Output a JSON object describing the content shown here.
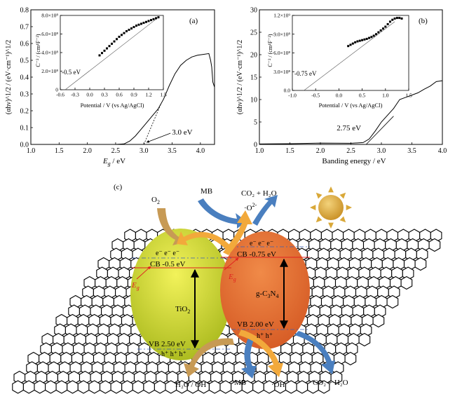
{
  "chart_data": [
    {
      "type": "line",
      "panel_label": "(a)",
      "xlabel_base": "E",
      "xlabel_sub": "g",
      "xlabel_unit": " / eV",
      "ylabel": "(αhν)^1/2 / (eV·cm⁻¹)^1/2",
      "xlim": [
        1.0,
        4.25
      ],
      "ylim": [
        0.0,
        0.8
      ],
      "xticks": [
        "1.0",
        "1.5",
        "2.0",
        "2.5",
        "3.0",
        "3.5",
        "4.0"
      ],
      "yticks": [
        "0.0",
        "0.1",
        "0.2",
        "0.3",
        "0.4",
        "0.5",
        "0.6",
        "0.7",
        "0.8"
      ],
      "series": [
        {
          "x": [
            1.0,
            2.0,
            2.5,
            2.65,
            2.75,
            2.85,
            2.95,
            3.05,
            3.15,
            3.25,
            3.35,
            3.45,
            3.55,
            3.65,
            3.75,
            3.85,
            3.95,
            4.05,
            4.15,
            4.18,
            4.2,
            4.22,
            4.25
          ],
          "y": [
            0.0,
            0.0,
            0.0,
            0.003,
            0.02,
            0.05,
            0.09,
            0.13,
            0.17,
            0.21,
            0.27,
            0.35,
            0.42,
            0.47,
            0.5,
            0.52,
            0.53,
            0.535,
            0.54,
            0.5,
            0.46,
            0.37,
            0.34
          ]
        }
      ],
      "tangent": {
        "x": [
          3.0,
          3.3
        ],
        "y": [
          0.0,
          0.24
        ]
      },
      "annotation": "3.0 eV",
      "annotation_point": [
        3.0,
        0.0
      ],
      "inset": {
        "ylabel": "C⁻² / (cm⁴F⁻²)",
        "xlabel": "Potential / V (vs Ag/AgCl)",
        "xlim": [
          -0.6,
          1.5
        ],
        "ylim": [
          0,
          800000000.0
        ],
        "xticks": [
          "-0.6",
          "-0.3",
          "0.0",
          "0.3",
          "0.6",
          "0.9",
          "1.2",
          "1.5"
        ],
        "yticks": [
          "0",
          "2.0×10⁸",
          "4.0×10⁸",
          "6.0×10⁸",
          "8.0×10⁸"
        ],
        "points": {
          "x": [
            0.2,
            0.25,
            0.3,
            0.35,
            0.4,
            0.45,
            0.5,
            0.55,
            0.6,
            0.65,
            0.7,
            0.75,
            0.8,
            0.85,
            0.9,
            0.95,
            1.0,
            1.05,
            1.1,
            1.15,
            1.2,
            1.25,
            1.3,
            1.35,
            1.4
          ],
          "y": [
            370000000.0,
            395000000.0,
            420000000.0,
            445000000.0,
            470000000.0,
            495000000.0,
            520000000.0,
            545000000.0,
            570000000.0,
            590000000.0,
            610000000.0,
            630000000.0,
            645000000.0,
            660000000.0,
            675000000.0,
            690000000.0,
            700000000.0,
            710000000.0,
            720000000.0,
            730000000.0,
            740000000.0,
            750000000.0,
            760000000.0,
            770000000.0,
            780000000.0
          ]
        },
        "fit_line": {
          "x": [
            -0.5,
            1.4
          ],
          "y": [
            0,
            780000000.0
          ]
        },
        "annotation": "-0.5 eV"
      }
    },
    {
      "type": "line",
      "panel_label": "(b)",
      "xlabel": "Banding energy / eV",
      "ylabel": "(αhν)^1/2 / (eV·cm⁻¹)^1/2",
      "xlim": [
        1.0,
        4.0
      ],
      "ylim": [
        0,
        30
      ],
      "xticks": [
        "1.0",
        "1.5",
        "2.0",
        "2.5",
        "3.0",
        "3.5",
        "4.0"
      ],
      "yticks": [
        "0",
        "5",
        "10",
        "15",
        "20",
        "25",
        "30"
      ],
      "series": [
        {
          "x": [
            1.0,
            1.5,
            2.0,
            2.5,
            2.7,
            2.8,
            2.9,
            3.0,
            3.1,
            3.2,
            3.3,
            3.4,
            3.5,
            3.6,
            3.7,
            3.8,
            3.9,
            4.0
          ],
          "y": [
            0.1,
            0.15,
            0.3,
            0.25,
            0.4,
            1.2,
            3.0,
            5.0,
            6.5,
            8.0,
            10.0,
            10.5,
            11.0,
            11.5,
            12.3,
            13.0,
            14.0,
            14.2
          ]
        }
      ],
      "tangent": {
        "x": [
          2.75,
          3.2
        ],
        "y": [
          0,
          6.3
        ]
      },
      "annotation": "2.75 eV",
      "annotation_point": [
        2.75,
        0
      ],
      "inset": {
        "ylabel": "C⁻² / (cm⁴F⁻²)",
        "xlabel": "Potential / V (vs Ag/AgCl)",
        "xlim": [
          -1.0,
          1.5
        ],
        "ylim": [
          0,
          1200000000.0
        ],
        "xticks": [
          "-1.0",
          "-0.5",
          "0.0",
          "0.5",
          "1.0",
          "1.5"
        ],
        "yticks": [
          "0.0",
          "3.0×10⁸",
          "6.0×10⁸",
          "9.0×10⁸",
          "1.2×10⁹"
        ],
        "points": {
          "x": [
            0.2,
            0.25,
            0.3,
            0.35,
            0.4,
            0.45,
            0.5,
            0.55,
            0.6,
            0.65,
            0.7,
            0.75,
            0.8,
            0.85,
            0.9,
            0.95,
            1.0,
            1.05,
            1.1,
            1.15,
            1.2,
            1.25,
            1.3,
            1.35
          ],
          "y": [
            710000000.0,
            730000000.0,
            750000000.0,
            770000000.0,
            785000000.0,
            795000000.0,
            805000000.0,
            815000000.0,
            825000000.0,
            840000000.0,
            855000000.0,
            875000000.0,
            900000000.0,
            930000000.0,
            960000000.0,
            990000000.0,
            1020000000.0,
            1060000000.0,
            1100000000.0,
            1130000000.0,
            1150000000.0,
            1160000000.0,
            1160000000.0,
            1150000000.0
          ]
        },
        "fit_line": {
          "x": [
            -0.75,
            1.2
          ],
          "y": [
            0,
            1100000000.0
          ]
        },
        "annotation": "-0.75 eV"
      }
    }
  ],
  "diagram_c": {
    "panel_label": "(c)",
    "o2": "O",
    "o2_sub": "2",
    "mb_top": "MB",
    "co2_h2o_top": "CO₂ + H₂O",
    "superoxide": "·O",
    "superoxide_sup": "2-",
    "electrons_left": "e⁻  e⁻  e⁻",
    "electrons_right": "e⁻  e⁻  e⁻",
    "cb_left": "CB  -0.5 eV",
    "cb_right": "CB  -0.75 eV",
    "eg_left": "E",
    "eg_sub": "g",
    "eg_right": "E",
    "tio2": "TiO",
    "tio2_sub": "2",
    "gc3n4": "g-C",
    "gc3n4_sub1": "3",
    "gc3n4_mid": "N",
    "gc3n4_sub2": "4",
    "vb_left": "VB    2.50 eV",
    "vb_right": "VB    2.00 eV",
    "holes_left": "h⁺  h⁺  h⁺",
    "holes_right": "h⁺  h⁺",
    "h2o_oh": "H₂O / OH⁻",
    "mb_bottom": "MB",
    "oh_radical": "·OH",
    "co2_h2o_bottom": "CO₂ + H₂O",
    "colors": {
      "tio2_fill": "#c9d62a",
      "gc3n4_fill": "#e8773a",
      "sun": "#e2b23a",
      "arrow_tan": "#c79a55",
      "arrow_blue": "#4a7fbf",
      "arrow_orange": "#f2a93b",
      "red_line": "#e02020"
    }
  }
}
